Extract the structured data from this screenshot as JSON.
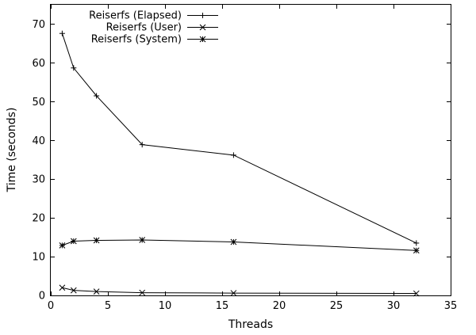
{
  "chart_data": {
    "type": "line",
    "title": "",
    "xlabel": "Threads",
    "ylabel": "Time (seconds)",
    "xlim": [
      0,
      35
    ],
    "ylim": [
      0,
      75
    ],
    "xticks": [
      0,
      5,
      10,
      15,
      20,
      25,
      30,
      35
    ],
    "yticks": [
      0,
      10,
      20,
      30,
      40,
      50,
      60,
      70
    ],
    "grid": false,
    "legend_position": "top-center",
    "series": [
      {
        "name": "Reiserfs (Elapsed)",
        "marker": "plus",
        "x": [
          1,
          2,
          4,
          8,
          16,
          32
        ],
        "values": [
          67.6,
          58.7,
          51.5,
          38.9,
          36.2,
          13.5
        ]
      },
      {
        "name": "Reiserfs (User)",
        "marker": "cross",
        "x": [
          1,
          2,
          4,
          8,
          16,
          32
        ],
        "values": [
          2.0,
          1.3,
          1.0,
          0.7,
          0.6,
          0.5
        ]
      },
      {
        "name": "Reiserfs (System)",
        "marker": "star",
        "x": [
          1,
          2,
          4,
          8,
          16,
          32
        ],
        "values": [
          12.9,
          14.0,
          14.2,
          14.3,
          13.8,
          11.6
        ]
      }
    ]
  }
}
